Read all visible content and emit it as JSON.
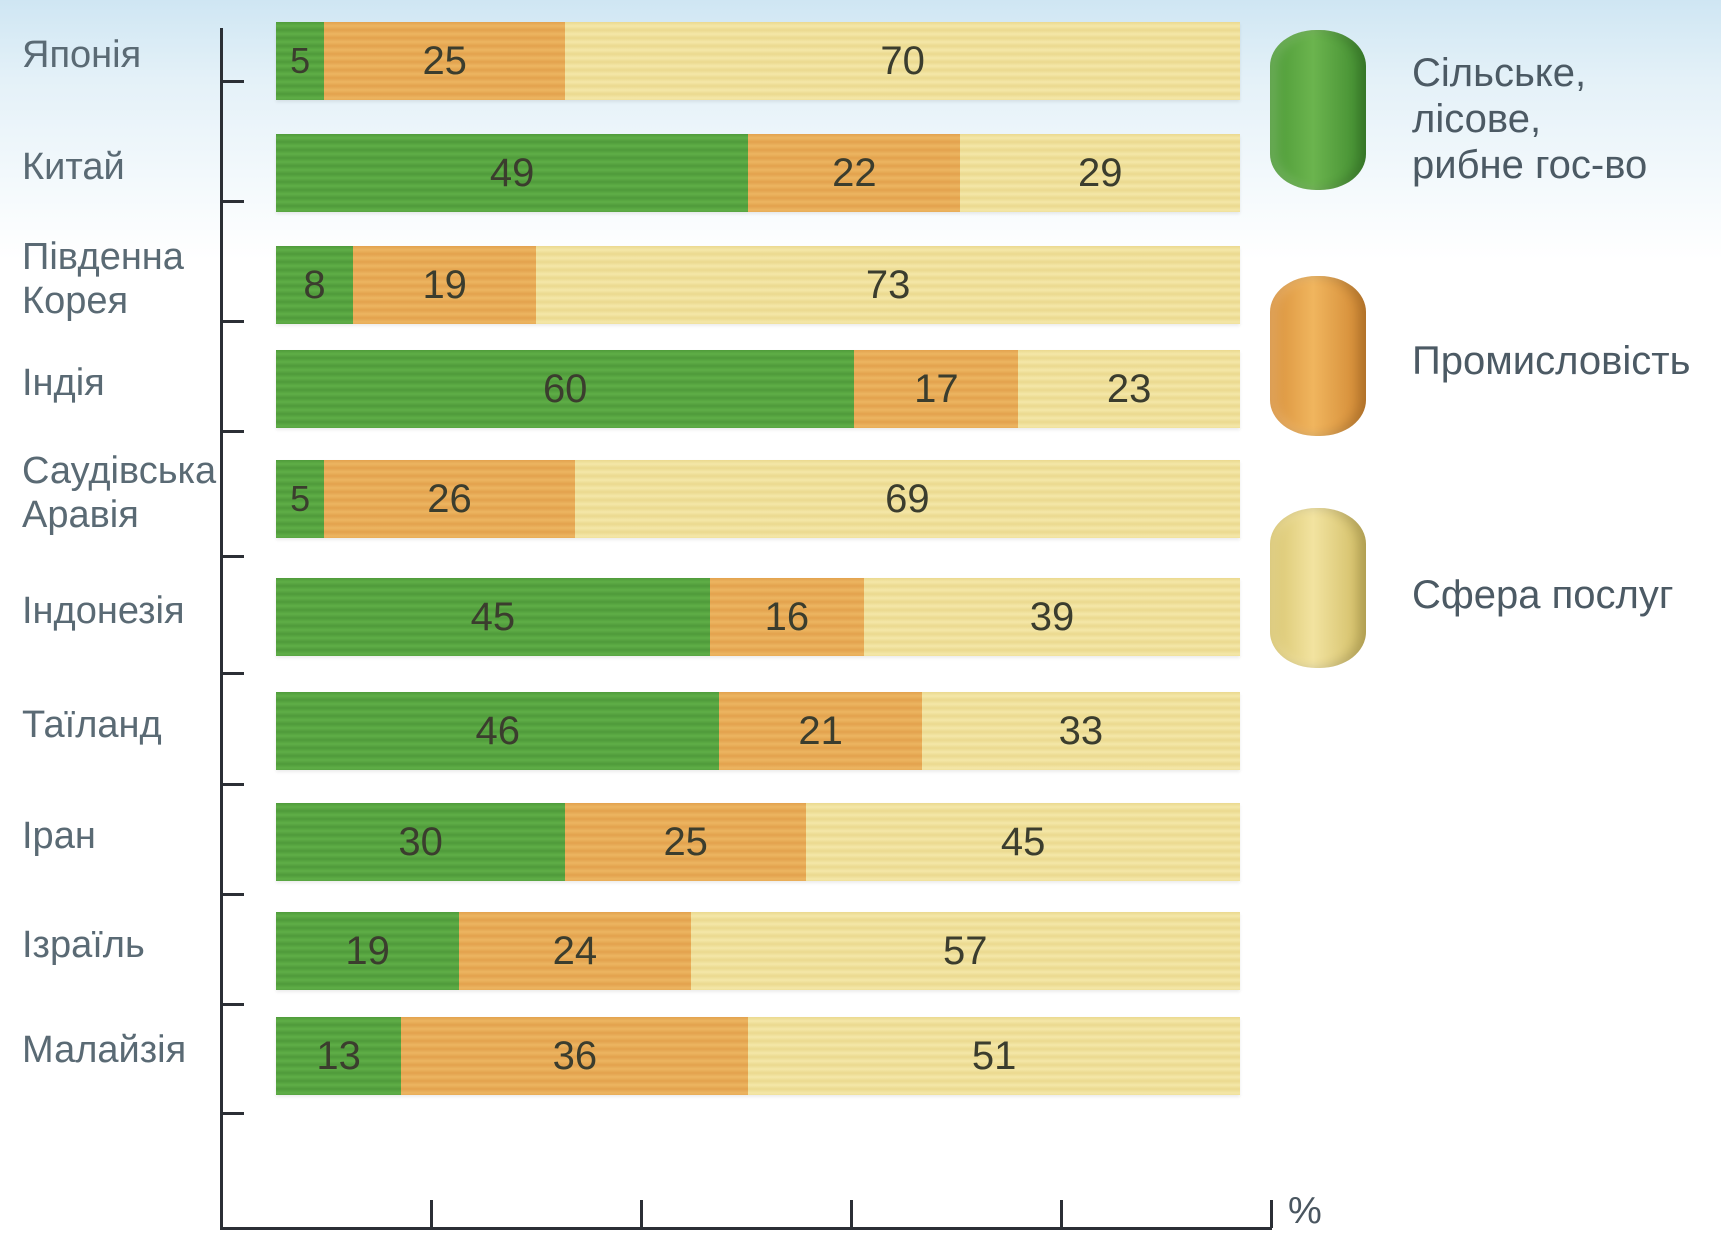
{
  "chart_data": {
    "type": "bar",
    "orientation": "horizontal",
    "stacked": true,
    "unit": "%",
    "categories": [
      "Японія",
      "Китай",
      "Південна\nКорея",
      "Індія",
      "Саудівська\nАравія",
      "Індонезія",
      "Таїланд",
      "Іран",
      "Ізраїль",
      "Малайзія"
    ],
    "series": [
      {
        "name": "Сільське,\nлісове,\nрибне гос-во",
        "values": [
          5,
          49,
          8,
          60,
          5,
          45,
          46,
          30,
          19,
          13
        ]
      },
      {
        "name": "Промисловість",
        "values": [
          25,
          22,
          19,
          17,
          26,
          16,
          21,
          25,
          24,
          36
        ]
      },
      {
        "name": "Сфера послуг",
        "values": [
          70,
          29,
          73,
          23,
          69,
          39,
          33,
          45,
          57,
          51
        ]
      }
    ],
    "xlim": [
      0,
      100
    ],
    "grid": false,
    "legend_position": "right"
  }
}
